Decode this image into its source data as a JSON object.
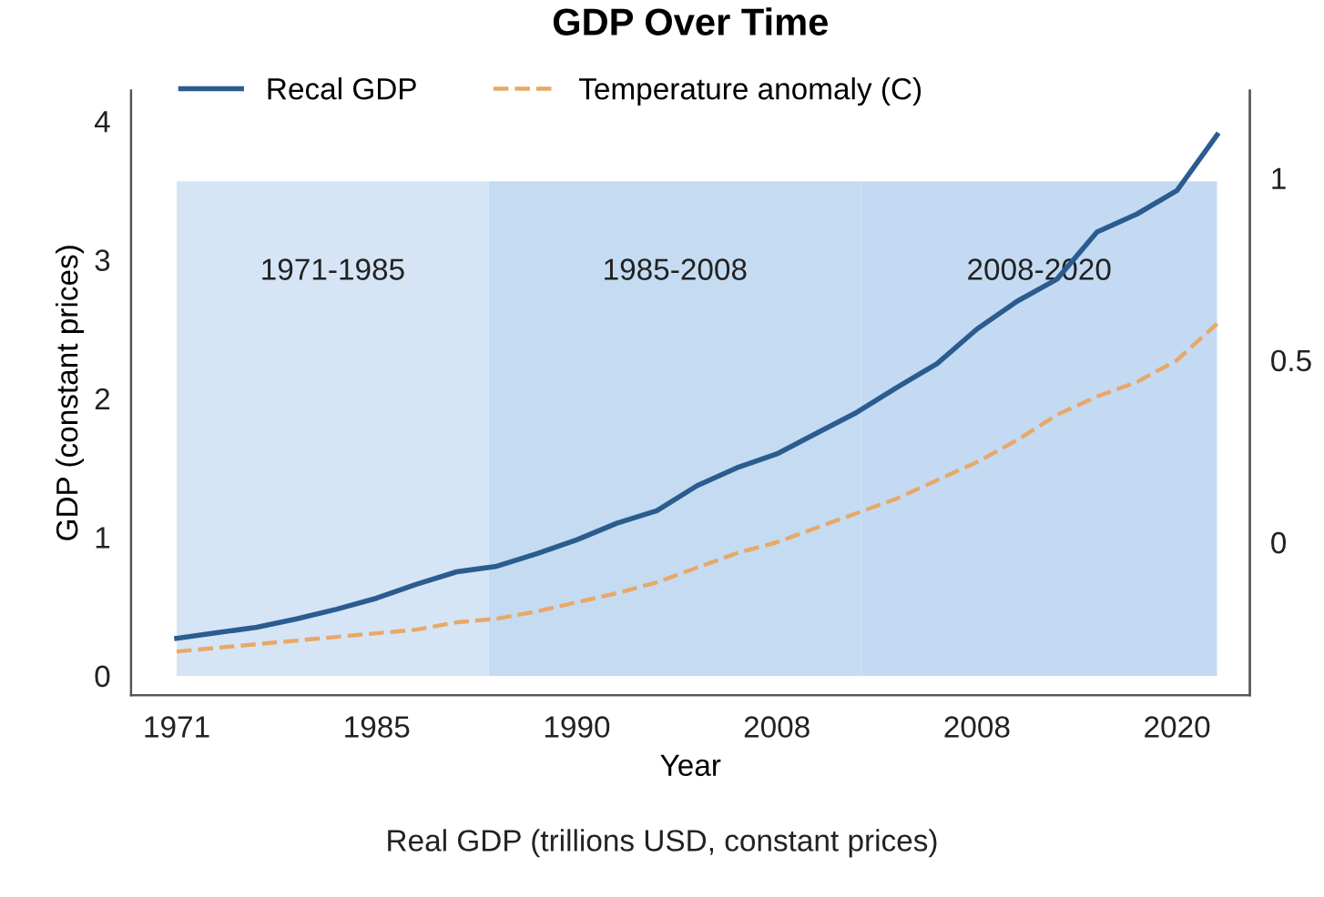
{
  "chart_data": {
    "type": "line",
    "title": "GDP Over Time",
    "xlabel": "Year",
    "ylabel": "GDP (constant prices)",
    "annotations": [
      "1971-1985",
      "1985-2008",
      "2008-2020",
      "Real GDP (trillions USD, constant prices)"
    ],
    "categories": [
      "1971",
      null,
      null,
      null,
      null,
      "1985",
      null,
      null,
      null,
      null,
      "1990",
      null,
      null,
      null,
      null,
      "2008",
      null,
      null,
      null,
      null,
      "2008",
      null,
      null,
      null,
      null,
      "2020",
      null
    ],
    "ylim": [
      -0.14,
      4.22
    ],
    "yticks": [
      0,
      1,
      2,
      3,
      4
    ],
    "y2lim": [
      -0.42,
      1.24
    ],
    "y2ticks": [
      0,
      0.5,
      1
    ],
    "grid": false,
    "legend": "top",
    "series": [
      {
        "name": "Recal GDP",
        "color": "#2b5c8f",
        "line_style": "solid",
        "values": [
          0.27,
          0.31,
          0.35,
          0.41,
          0.48,
          0.56,
          0.66,
          0.75,
          0.79,
          0.88,
          0.98,
          1.1,
          1.19,
          1.37,
          1.5,
          1.6,
          1.75,
          1.9,
          2.08,
          2.25,
          2.5,
          2.7,
          2.86,
          3.2,
          3.33,
          3.5,
          3.9
        ]
      },
      {
        "name": "Temperature anomaly (C)",
        "color": "#e8a867",
        "line_style": "dashed",
        "axis": "y2",
        "values": [
          -0.3,
          -0.29,
          -0.28,
          -0.27,
          -0.26,
          -0.25,
          -0.24,
          -0.22,
          -0.21,
          -0.19,
          -0.165,
          -0.14,
          -0.11,
          -0.07,
          -0.03,
          0.0,
          0.04,
          0.08,
          0.12,
          0.17,
          0.22,
          0.28,
          0.35,
          0.4,
          0.44,
          0.5,
          0.6
        ]
      }
    ]
  }
}
